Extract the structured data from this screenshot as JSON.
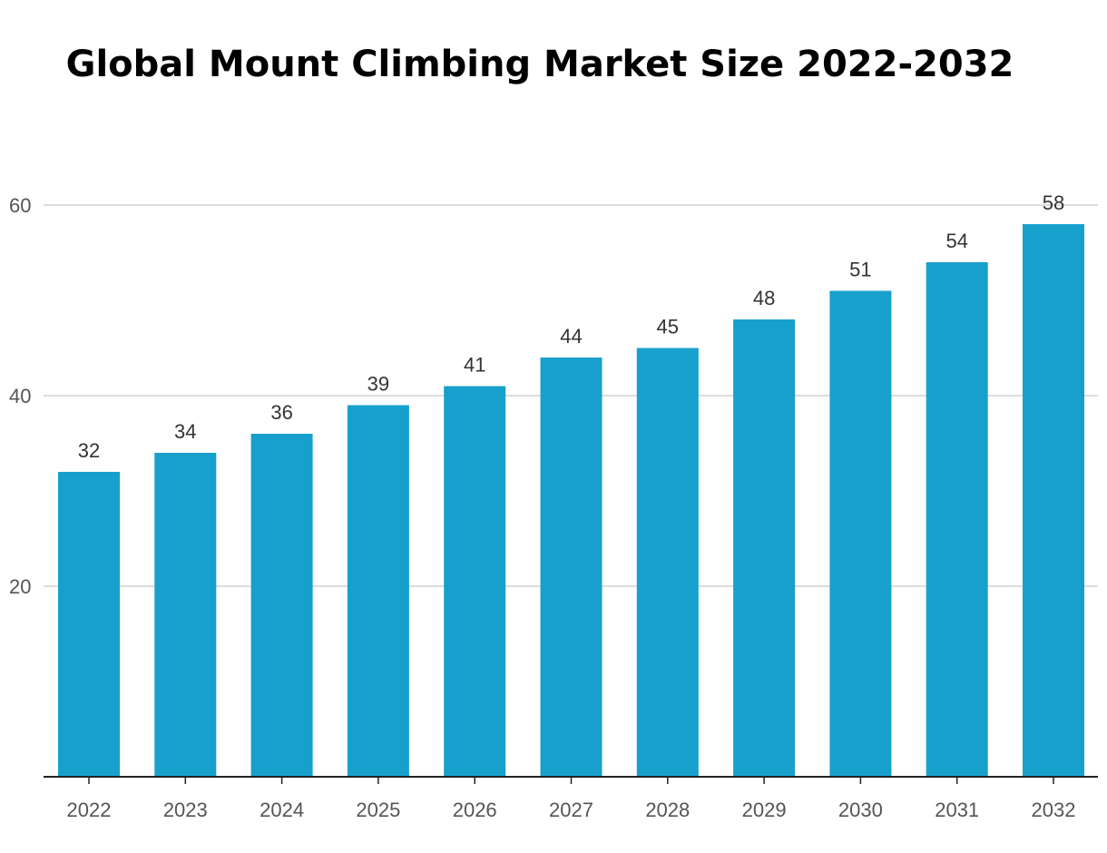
{
  "chart_data": {
    "type": "bar",
    "title": "Global Mount Climbing Market Size 2022-2032",
    "xlabel": "",
    "ylabel": "",
    "categories": [
      "2022",
      "2023",
      "2024",
      "2025",
      "2026",
      "2027",
      "2028",
      "2029",
      "2030",
      "2031",
      "2032"
    ],
    "values": [
      32,
      34,
      36,
      39,
      41,
      44,
      45,
      48,
      51,
      54,
      58
    ],
    "ylim": [
      0,
      60
    ],
    "yticks": [
      20,
      40,
      60
    ],
    "grid": true,
    "legend": "none",
    "colors": {
      "bar": "#18a0cc",
      "grid": "#d0d0d0",
      "axis": "#222222"
    }
  }
}
